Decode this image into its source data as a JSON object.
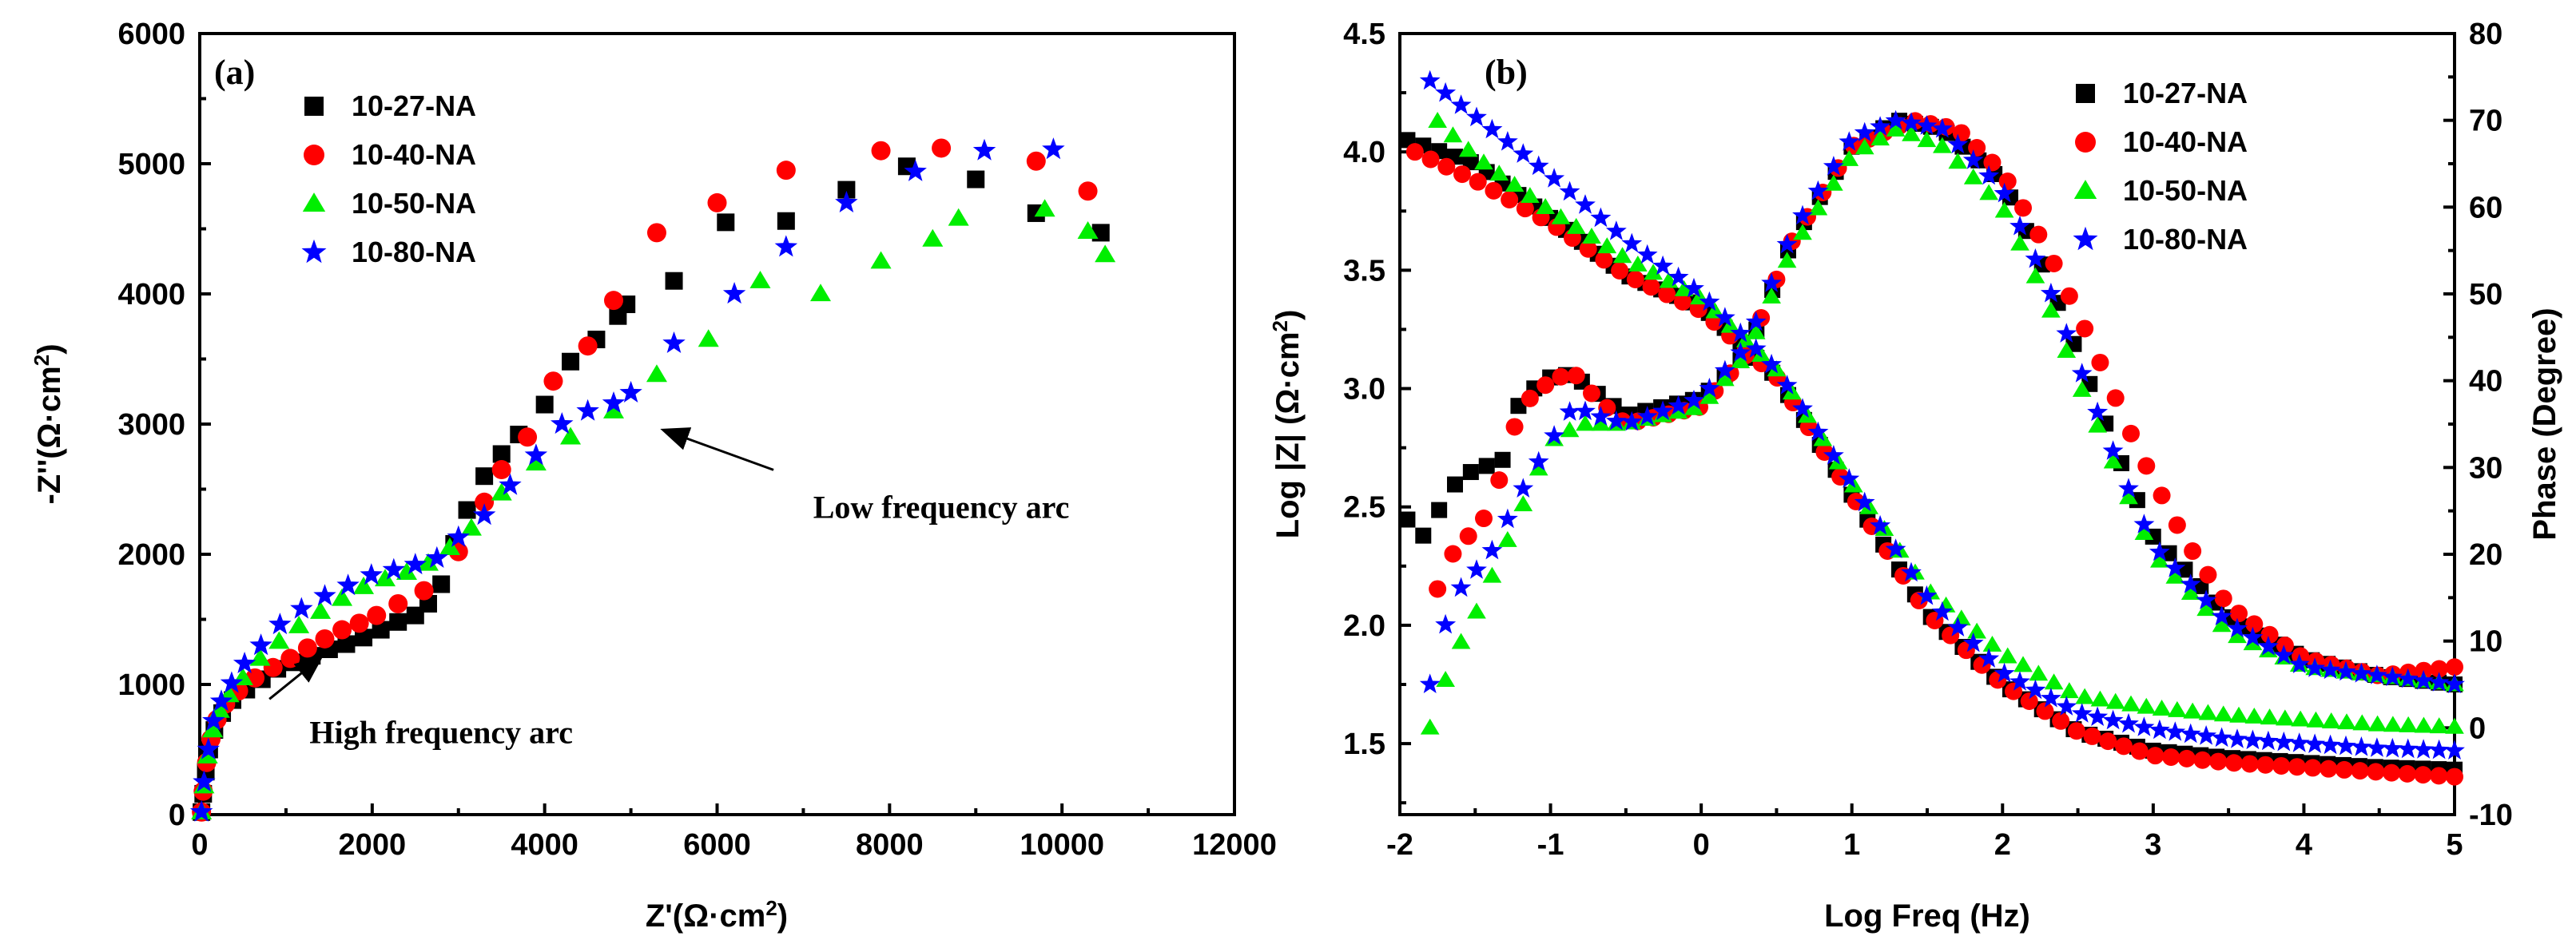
{
  "series_colors": [
    "#000000",
    "#ff0000",
    "#00ee00",
    "#0000ff"
  ],
  "series_markers": [
    "square",
    "circle",
    "triangle",
    "star"
  ],
  "chart_data": [
    {
      "type": "scatter",
      "panel_label": "(a)",
      "title": "",
      "xlabel": "Z'(Ω·cm",
      "xlabel_sup": "2",
      "xlabel_close": ")",
      "ylabel": "-Z''(Ω·cm",
      "ylabel_sup": "2",
      "ylabel_close": ")",
      "xlim": [
        0,
        12000
      ],
      "ylim": [
        0,
        6000
      ],
      "xticks": [
        0,
        2000,
        4000,
        6000,
        8000,
        10000,
        12000
      ],
      "yticks": [
        0,
        1000,
        2000,
        3000,
        4000,
        5000,
        6000
      ],
      "legend_position": "top-left",
      "annotations": [
        {
          "text": "High frequency arc",
          "arrow_to": [
            1300,
            1250
          ],
          "text_at": [
            2800,
            550
          ]
        },
        {
          "text": "Low frequency arc",
          "arrow_to": [
            5300,
            3000
          ],
          "text_at": [
            8600,
            2280
          ]
        }
      ],
      "series": [
        {
          "name": "10-27-NA",
          "x": [
            20,
            40,
            70,
            110,
            170,
            260,
            380,
            540,
            720,
            900,
            1100,
            1300,
            1500,
            1700,
            1900,
            2100,
            2300,
            2500,
            2650,
            2800,
            2950,
            3100,
            3300,
            3500,
            3700,
            4000,
            4300,
            4600,
            4850,
            4950,
            5500,
            6100,
            6800,
            7500,
            8200,
            9000,
            9700,
            10450
          ],
          "y": [
            20,
            160,
            330,
            500,
            650,
            780,
            880,
            960,
            1040,
            1120,
            1170,
            1220,
            1270,
            1310,
            1360,
            1420,
            1480,
            1530,
            1620,
            1770,
            2080,
            2340,
            2600,
            2770,
            2920,
            3150,
            3480,
            3650,
            3830,
            3920,
            4100,
            4550,
            4560,
            4800,
            4980,
            4880,
            4620,
            4470
          ]
        },
        {
          "name": "10-40-NA",
          "x": [
            20,
            40,
            80,
            130,
            200,
            300,
            450,
            640,
            850,
            1050,
            1250,
            1450,
            1650,
            1850,
            2050,
            2300,
            2600,
            3000,
            3300,
            3500,
            3800,
            4100,
            4500,
            4800,
            5300,
            6000,
            6800,
            7900,
            8600,
            9700,
            10300
          ],
          "y": [
            20,
            180,
            400,
            580,
            730,
            850,
            950,
            1050,
            1130,
            1200,
            1280,
            1350,
            1420,
            1470,
            1530,
            1620,
            1720,
            2020,
            2400,
            2650,
            2900,
            3330,
            3600,
            3950,
            4470,
            4700,
            4950,
            5100,
            5120,
            5020,
            4790
          ]
        },
        {
          "name": "10-50-NA",
          "x": [
            20,
            50,
            90,
            150,
            230,
            340,
            500,
            700,
            920,
            1150,
            1400,
            1650,
            1900,
            2150,
            2400,
            2650,
            2900,
            3150,
            3500,
            3900,
            4300,
            4800,
            5300,
            5900,
            6500,
            7200,
            7900,
            8500,
            8800,
            9800,
            10300,
            10500
          ],
          "y": [
            20,
            220,
            450,
            650,
            800,
            920,
            1050,
            1200,
            1330,
            1450,
            1560,
            1660,
            1750,
            1810,
            1860,
            1930,
            2050,
            2200,
            2470,
            2700,
            2900,
            3100,
            3380,
            3650,
            4100,
            4000,
            4250,
            4420,
            4580,
            4650,
            4480,
            4300
          ]
        },
        {
          "name": "10-80-NA",
          "x": [
            20,
            50,
            100,
            160,
            250,
            370,
            520,
            710,
            930,
            1180,
            1450,
            1720,
            1990,
            2250,
            2500,
            2750,
            3000,
            3300,
            3600,
            3900,
            4200,
            4500,
            4800,
            5000,
            5500,
            6200,
            6800,
            7500,
            8300,
            9100,
            9900
          ],
          "y": [
            20,
            250,
            500,
            720,
            870,
            1010,
            1160,
            1300,
            1460,
            1580,
            1680,
            1760,
            1840,
            1880,
            1920,
            1970,
            2130,
            2300,
            2530,
            2760,
            3000,
            3100,
            3160,
            3240,
            3620,
            4000,
            4360,
            4700,
            4940,
            5100,
            5110
          ]
        }
      ]
    },
    {
      "type": "scatter",
      "panel_label": "(b)",
      "title": "",
      "xlabel": "Log Freq (Hz)",
      "ylabel": "Log |Z| (Ω·cm",
      "ylabel_sup": "2",
      "ylabel_close": ")",
      "y2label": "Phase (Degree)",
      "xlim": [
        -2,
        5
      ],
      "ylim": [
        1.2,
        4.5
      ],
      "y2lim": [
        -10,
        80
      ],
      "xticks": [
        -2,
        -1,
        0,
        1,
        2,
        3,
        4,
        5
      ],
      "yticks": [
        1.5,
        2.0,
        2.5,
        3.0,
        3.5,
        4.0,
        4.5
      ],
      "y2ticks": [
        -10,
        0,
        10,
        20,
        30,
        40,
        50,
        60,
        70,
        80
      ],
      "legend_position": "top-right",
      "series": [
        {
          "name": "10-27-NA",
          "logz_knots": [
            [
              -1.95,
              4.05
            ],
            [
              -1.5,
              3.95
            ],
            [
              -1.0,
              3.72
            ],
            [
              -0.5,
              3.48
            ],
            [
              0.0,
              3.35
            ],
            [
              0.5,
              3.05
            ],
            [
              1.0,
              2.55
            ],
            [
              1.5,
              2.05
            ],
            [
              2.0,
              1.75
            ],
            [
              2.5,
              1.55
            ],
            [
              3.0,
              1.47
            ],
            [
              3.5,
              1.44
            ],
            [
              4.0,
              1.42
            ],
            [
              4.5,
              1.4
            ],
            [
              5.0,
              1.39
            ]
          ],
          "phase_knots": [
            [
              -1.95,
              24
            ],
            [
              -1.85,
              22
            ],
            [
              -1.6,
              29
            ],
            [
              -1.3,
              31
            ],
            [
              -1.2,
              38
            ],
            [
              -0.95,
              41
            ],
            [
              -0.8,
              40
            ],
            [
              -0.5,
              36
            ],
            [
              0.0,
              38
            ],
            [
              0.3,
              43
            ],
            [
              0.6,
              56
            ],
            [
              1.0,
              67
            ],
            [
              1.3,
              70
            ],
            [
              1.6,
              69
            ],
            [
              2.0,
              63
            ],
            [
              2.3,
              52
            ],
            [
              2.5,
              43
            ],
            [
              2.8,
              30
            ],
            [
              3.0,
              22
            ],
            [
              3.5,
              13
            ],
            [
              4.0,
              8
            ],
            [
              4.5,
              6
            ],
            [
              5.0,
              5
            ]
          ]
        },
        {
          "name": "10-40-NA",
          "logz_knots": [
            [
              -1.9,
              4.0
            ],
            [
              -1.5,
              3.88
            ],
            [
              -1.0,
              3.7
            ],
            [
              -0.5,
              3.48
            ],
            [
              0.0,
              3.33
            ],
            [
              0.5,
              3.05
            ],
            [
              1.0,
              2.55
            ],
            [
              1.5,
              2.05
            ],
            [
              2.0,
              1.75
            ],
            [
              2.5,
              1.55
            ],
            [
              3.0,
              1.45
            ],
            [
              3.5,
              1.42
            ],
            [
              4.0,
              1.4
            ],
            [
              4.5,
              1.38
            ],
            [
              5.0,
              1.36
            ]
          ],
          "phase_knots": [
            [
              -1.75,
              16
            ],
            [
              -1.65,
              20
            ],
            [
              -1.4,
              25
            ],
            [
              -1.2,
              37
            ],
            [
              -1.0,
              40
            ],
            [
              -0.85,
              41
            ],
            [
              -0.7,
              38
            ],
            [
              -0.5,
              35
            ],
            [
              0.0,
              37
            ],
            [
              0.3,
              43
            ],
            [
              0.6,
              56
            ],
            [
              1.0,
              67
            ],
            [
              1.4,
              70
            ],
            [
              1.7,
              69
            ],
            [
              2.0,
              64
            ],
            [
              2.3,
              55
            ],
            [
              2.6,
              44
            ],
            [
              2.9,
              32
            ],
            [
              3.2,
              22
            ],
            [
              3.5,
              14
            ],
            [
              4.0,
              8
            ],
            [
              4.5,
              6
            ],
            [
              5.0,
              7
            ]
          ]
        },
        {
          "name": "10-50-NA",
          "logz_knots": [
            [
              -1.75,
              4.13
            ],
            [
              -1.5,
              3.98
            ],
            [
              -1.0,
              3.75
            ],
            [
              -0.5,
              3.55
            ],
            [
              0.0,
              3.38
            ],
            [
              0.5,
              3.08
            ],
            [
              1.0,
              2.6
            ],
            [
              1.5,
              2.15
            ],
            [
              2.0,
              1.88
            ],
            [
              2.5,
              1.7
            ],
            [
              3.0,
              1.65
            ],
            [
              3.5,
              1.62
            ],
            [
              4.0,
              1.6
            ],
            [
              4.5,
              1.58
            ],
            [
              5.0,
              1.57
            ]
          ],
          "phase_knots": [
            [
              -1.8,
              0
            ],
            [
              -1.65,
              8
            ],
            [
              -1.5,
              13
            ],
            [
              -1.2,
              25
            ],
            [
              -1.0,
              33
            ],
            [
              -0.8,
              35
            ],
            [
              -0.5,
              35
            ],
            [
              0.0,
              37
            ],
            [
              0.3,
              43
            ],
            [
              0.6,
              55
            ],
            [
              1.0,
              66
            ],
            [
              1.3,
              69
            ],
            [
              1.6,
              67
            ],
            [
              2.0,
              60
            ],
            [
              2.3,
              49
            ],
            [
              2.5,
              40
            ],
            [
              2.8,
              28
            ],
            [
              3.0,
              20
            ],
            [
              3.5,
              11
            ],
            [
              4.0,
              7
            ],
            [
              4.5,
              6
            ],
            [
              5.0,
              5
            ]
          ]
        },
        {
          "name": "10-80-NA",
          "logz_knots": [
            [
              -1.8,
              4.3
            ],
            [
              -1.5,
              4.15
            ],
            [
              -1.0,
              3.9
            ],
            [
              -0.5,
              3.63
            ],
            [
              0.0,
              3.4
            ],
            [
              0.5,
              3.08
            ],
            [
              1.0,
              2.6
            ],
            [
              1.5,
              2.12
            ],
            [
              2.0,
              1.8
            ],
            [
              2.5,
              1.63
            ],
            [
              3.0,
              1.56
            ],
            [
              3.5,
              1.52
            ],
            [
              4.0,
              1.5
            ],
            [
              4.5,
              1.48
            ],
            [
              5.0,
              1.47
            ]
          ],
          "phase_knots": [
            [
              -1.8,
              5
            ],
            [
              -1.65,
              15
            ],
            [
              -1.4,
              20
            ],
            [
              -1.2,
              27
            ],
            [
              -1.0,
              33
            ],
            [
              -0.85,
              37
            ],
            [
              -0.7,
              36
            ],
            [
              -0.5,
              35
            ],
            [
              0.0,
              38
            ],
            [
              0.3,
              44
            ],
            [
              0.6,
              57
            ],
            [
              1.0,
              68
            ],
            [
              1.3,
              70
            ],
            [
              1.6,
              69
            ],
            [
              2.0,
              62
            ],
            [
              2.3,
              51
            ],
            [
              2.5,
              42
            ],
            [
              2.8,
              29
            ],
            [
              3.0,
              21
            ],
            [
              3.5,
              12
            ],
            [
              4.0,
              7
            ],
            [
              4.5,
              6
            ],
            [
              5.0,
              5
            ]
          ]
        }
      ]
    }
  ]
}
